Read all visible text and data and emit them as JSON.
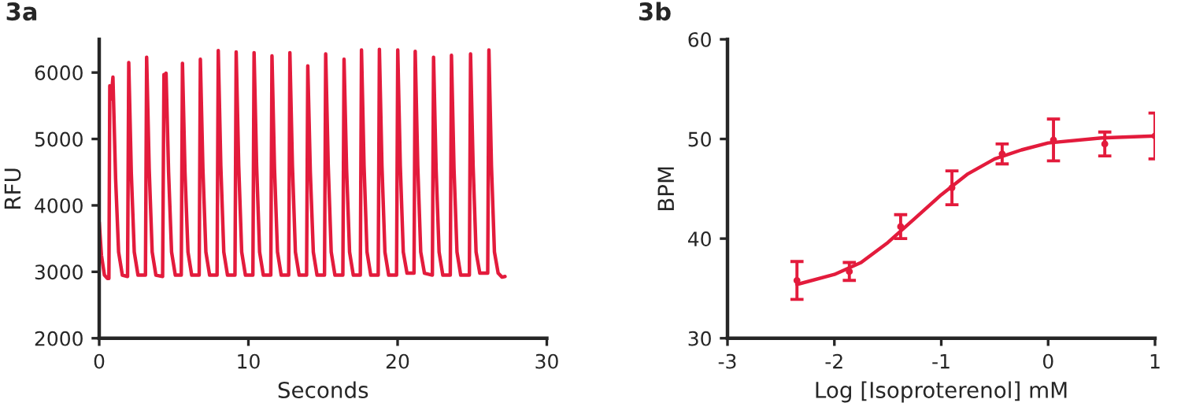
{
  "chart_data": [
    {
      "type": "line",
      "title": "3a",
      "xlabel": "Seconds",
      "ylabel": "RFU",
      "xlim": [
        0,
        30
      ],
      "ylim": [
        2000,
        6500
      ],
      "xticks": [
        0,
        10,
        20,
        30
      ],
      "yticks": [
        2000,
        3000,
        4000,
        5000,
        6000
      ],
      "grid": false,
      "legend": false,
      "marker": "none",
      "line_style": "solid",
      "series": [
        {
          "color": "#e31b3c",
          "x": [
            0,
            0.15,
            0.35,
            0.55,
            0.65,
            0.71,
            0.8,
            0.92,
            1.1,
            1.3,
            1.55,
            1.9,
            1.98,
            2.15,
            2.35,
            2.6,
            3.1,
            3.18,
            3.35,
            3.55,
            3.8,
            4.25,
            4.34,
            4.4,
            4.48,
            4.65,
            4.85,
            5.1,
            5.5,
            5.58,
            5.75,
            5.95,
            6.2,
            6.7,
            6.78,
            6.95,
            7.15,
            7.4,
            7.9,
            7.98,
            8.15,
            8.35,
            8.6,
            9.1,
            9.18,
            9.35,
            9.55,
            9.8,
            10.3,
            10.38,
            10.55,
            10.75,
            11.0,
            11.5,
            11.58,
            11.75,
            11.95,
            12.2,
            12.7,
            12.78,
            12.95,
            13.15,
            13.4,
            13.9,
            13.98,
            14.15,
            14.35,
            14.6,
            15.1,
            15.18,
            15.35,
            15.55,
            15.8,
            16.33,
            16.41,
            16.58,
            16.78,
            17.03,
            17.5,
            17.58,
            17.75,
            17.95,
            18.2,
            18.7,
            18.78,
            18.95,
            19.15,
            19.4,
            19.93,
            20.01,
            20.18,
            20.38,
            20.63,
            21.1,
            21.18,
            21.35,
            21.55,
            21.8,
            22.33,
            22.41,
            22.58,
            22.78,
            23.03,
            23.53,
            23.61,
            23.78,
            23.98,
            24.23,
            24.81,
            24.89,
            25.06,
            25.26,
            25.51,
            26.04,
            26.12,
            26.29,
            26.49,
            26.74,
            27.0,
            27.2
          ],
          "values": [
            3750,
            3250,
            2950,
            2900,
            2900,
            5800,
            5600,
            5930,
            4400,
            3300,
            2950,
            2930,
            6150,
            4500,
            3300,
            2950,
            2950,
            6230,
            4550,
            3300,
            2950,
            2930,
            5970,
            5950,
            5990,
            4500,
            3300,
            2950,
            2950,
            6140,
            4500,
            3300,
            2950,
            2950,
            6200,
            4550,
            3300,
            2950,
            2950,
            6330,
            4600,
            3300,
            2950,
            2950,
            6310,
            4600,
            3300,
            2950,
            2950,
            6300,
            4600,
            3300,
            2950,
            2950,
            6250,
            4550,
            3300,
            2950,
            2950,
            6300,
            4600,
            3300,
            2950,
            2950,
            6100,
            4500,
            3300,
            2950,
            2950,
            6280,
            4600,
            3300,
            2950,
            2950,
            6200,
            4550,
            3300,
            2950,
            2950,
            6340,
            4600,
            3300,
            2950,
            2950,
            6350,
            4600,
            3300,
            2950,
            2950,
            6340,
            4600,
            3300,
            2980,
            2980,
            6320,
            4600,
            3300,
            2980,
            2950,
            6230,
            4550,
            3300,
            2950,
            2950,
            6260,
            4550,
            3300,
            2950,
            2950,
            6280,
            4600,
            3300,
            2980,
            2980,
            6340,
            4600,
            3300,
            2980,
            2920,
            2930
          ]
        }
      ]
    },
    {
      "type": "scatter",
      "title": "3b",
      "xlabel": "Log [Isoproterenol] mM",
      "ylabel": "BPM",
      "xlim": [
        -3,
        1
      ],
      "ylim": [
        30,
        60
      ],
      "xticks": [
        -3,
        -2,
        -1,
        0,
        1
      ],
      "yticks": [
        30,
        40,
        50,
        60
      ],
      "grid": false,
      "legend": false,
      "series": [
        {
          "type": "scatter",
          "marker": "circle",
          "color": "#e31b3c",
          "x": [
            -2.35,
            -1.86,
            -1.38,
            -0.9,
            -0.43,
            0.05,
            0.53,
            1.0
          ],
          "values": [
            35.8,
            36.7,
            41.2,
            45.1,
            48.5,
            49.9,
            49.5,
            50.3
          ],
          "errors": [
            1.9,
            0.9,
            1.2,
            1.7,
            1.0,
            2.1,
            1.2,
            2.3
          ]
        },
        {
          "type": "line",
          "marker": "none",
          "line_style": "solid",
          "color": "#e31b3c",
          "x": [
            -2.35,
            -2.0,
            -1.75,
            -1.5,
            -1.25,
            -1.0,
            -0.75,
            -0.5,
            -0.25,
            0.0,
            0.5,
            1.0
          ],
          "values": [
            35.4,
            36.4,
            37.6,
            39.6,
            42.0,
            44.4,
            46.5,
            48.0,
            48.9,
            49.6,
            50.1,
            50.3
          ]
        }
      ]
    }
  ]
}
